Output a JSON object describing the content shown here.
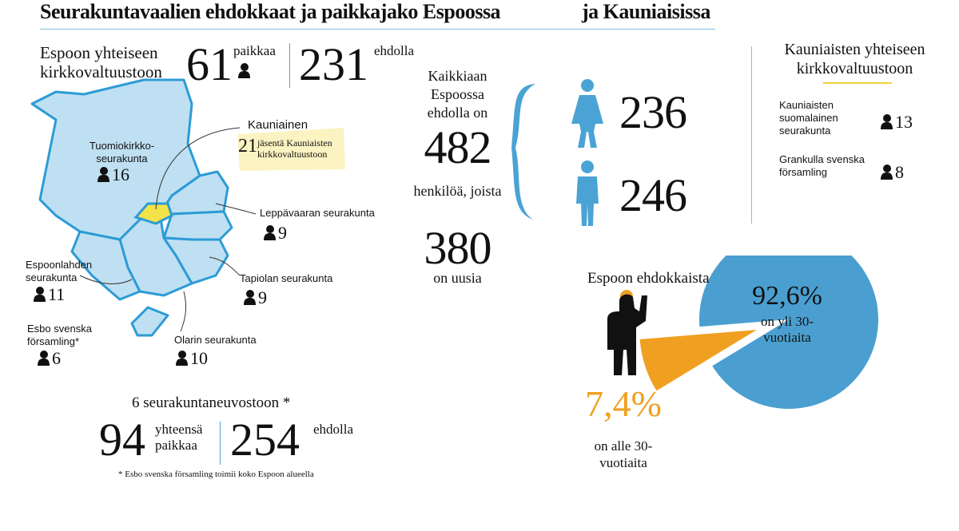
{
  "header": {
    "title": "Seurakuntavaalien ehdokkaat ja paikkajako Espoossa",
    "title2": "ja Kauniaisissa"
  },
  "espoo": {
    "label": "Espoon yhteiseen kirkkovaltuustoon",
    "seats": 61,
    "seats_label": "paikkaa",
    "candidates": 231,
    "candidates_label": "ehdolla"
  },
  "map": {
    "parishes": [
      {
        "name": "Tuomiokirkko-seurakunta",
        "seats": 16
      },
      {
        "name": "Leppävaaran seurakunta",
        "seats": 9
      },
      {
        "name": "Espoonlahden seurakunta",
        "seats": 11
      },
      {
        "name": "Tapiolan seurakunta",
        "seats": 9
      },
      {
        "name": "Esbo svenska församling*",
        "seats": 6
      },
      {
        "name": "Olarin seurakunta",
        "seats": 10
      }
    ],
    "kauniainen": {
      "name": "Kauniainen",
      "seats": 21,
      "note": "jäsentä Kauniaisten kirkkovaltuustoon"
    }
  },
  "councils": {
    "label": "6 seurakuntaneuvostoon *",
    "seats": 94,
    "seats_label": "yhteensä paikkaa",
    "candidates": 254,
    "candidates_label": "ehdolla",
    "footnote": "* Esbo svenska församling toimii koko Espoon alueella"
  },
  "totals": {
    "intro": "Kaikkiaan Espoossa ehdolla on",
    "total": 482,
    "mid": "henkilöä, joista",
    "new": 380,
    "new_label": "on uusia",
    "women": 236,
    "men": 246
  },
  "kauniainen": {
    "title": "Kauniaisten yhteiseen kirkkovaltuustoon",
    "parishes": [
      {
        "name": "Kauniaisten suomalainen seurakunta",
        "seats": 13
      },
      {
        "name": "Grankulla svenska församling",
        "seats": 8
      }
    ]
  },
  "chart_data": {
    "type": "pie",
    "title": "Espoon ehdokkaista",
    "categories": [
      "on yli 30-vuotiaita",
      "on alle 30-vuotiaita"
    ],
    "values": [
      92.6,
      7.4
    ],
    "value_labels": [
      "92,6%",
      "7,4%"
    ],
    "colors": [
      "#4a9fd0",
      "#f0a020"
    ]
  }
}
